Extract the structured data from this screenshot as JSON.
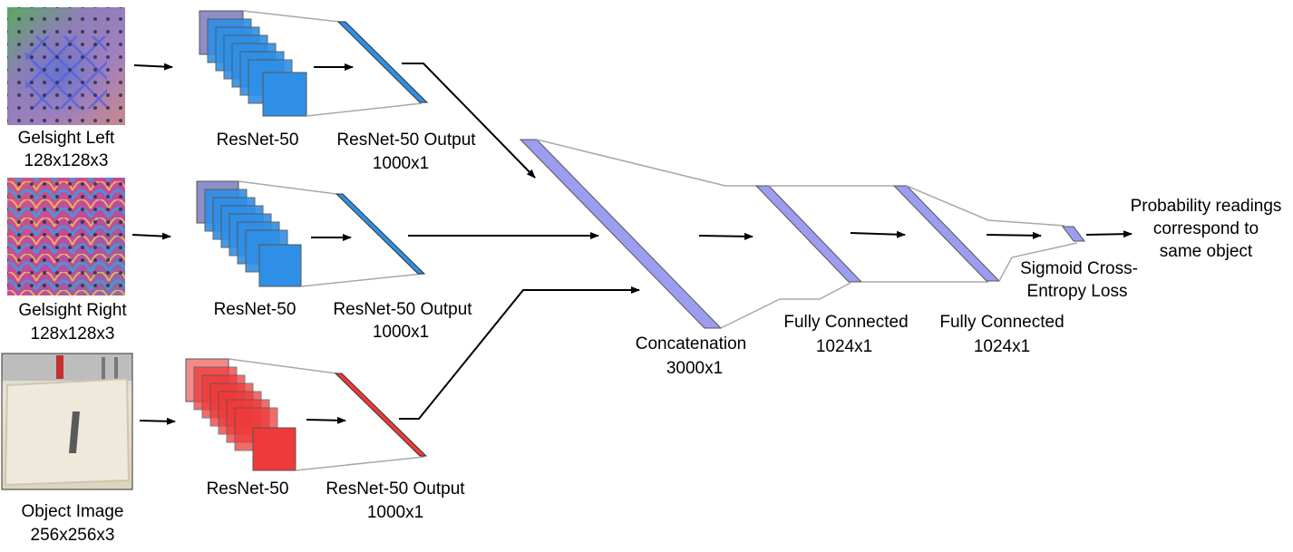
{
  "inputs": [
    {
      "name": "Gelsight Left",
      "size": "128x128x3"
    },
    {
      "name": "Gelsight Right",
      "size": "128x128x3"
    },
    {
      "name": "Object Image",
      "size": "256x256x3"
    }
  ],
  "branches": [
    {
      "network": "ResNet-50",
      "output_title": "ResNet-50 Output",
      "output_size": "1000x1"
    },
    {
      "network": "ResNet-50",
      "output_title": "ResNet-50 Output",
      "output_size": "1000x1"
    },
    {
      "network": "ResNet-50",
      "output_title": "ResNet-50 Output",
      "output_size": "1000x1"
    }
  ],
  "concat": {
    "title": "Concatenation",
    "size": "3000x1"
  },
  "fc": [
    {
      "title": "Fully Connected",
      "size": "1024x1"
    },
    {
      "title": "Fully Connected",
      "size": "1024x1"
    }
  ],
  "loss": {
    "line1": "Sigmoid Cross-",
    "line2": "Entropy Loss"
  },
  "output": {
    "line1": "Probability readings",
    "line2": "correspond to",
    "line3": "same object"
  },
  "colors": {
    "tactile_branch": "#2f8fe6",
    "image_branch": "#ee3a3a",
    "fused_layers": "#9c9cf0",
    "arrows": "#000000",
    "funnel_lines": "#a8a8a8"
  }
}
